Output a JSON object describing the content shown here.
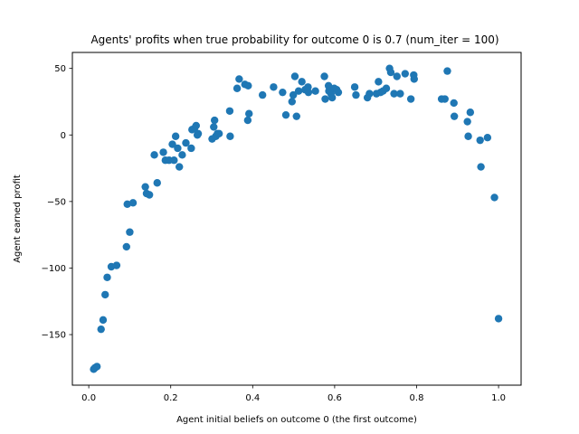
{
  "chart_data": {
    "type": "scatter",
    "title": "Agents' profits when true probability for outcome 0 is 0.7 (num_iter = 100)",
    "xlabel": "Agent initial beliefs on outcome 0 (the first outcome)",
    "ylabel": "Agent earned profit",
    "xlim": [
      -0.04,
      1.055
    ],
    "ylim": [
      -188,
      62
    ],
    "xticks": [
      0.0,
      0.2,
      0.4,
      0.6,
      0.8,
      1.0
    ],
    "xtick_labels": [
      "0.0",
      "0.2",
      "0.4",
      "0.6",
      "0.8",
      "1.0"
    ],
    "yticks": [
      -150,
      -100,
      -50,
      0,
      50
    ],
    "ytick_labels": [
      "−150",
      "−100",
      "−50",
      "0",
      "50"
    ],
    "grid": false,
    "marker_color": "#1f77b4",
    "points": [
      [
        0.012,
        -176
      ],
      [
        0.015,
        -175
      ],
      [
        0.02,
        -174
      ],
      [
        0.03,
        -146
      ],
      [
        0.035,
        -139
      ],
      [
        0.04,
        -120
      ],
      [
        0.045,
        -107
      ],
      [
        0.055,
        -99
      ],
      [
        0.068,
        -98
      ],
      [
        0.092,
        -84
      ],
      [
        0.094,
        -52
      ],
      [
        0.1,
        -73
      ],
      [
        0.108,
        -51
      ],
      [
        0.138,
        -39
      ],
      [
        0.141,
        -44
      ],
      [
        0.148,
        -45
      ],
      [
        0.16,
        -15
      ],
      [
        0.167,
        -36
      ],
      [
        0.182,
        -13
      ],
      [
        0.187,
        -19
      ],
      [
        0.196,
        -19
      ],
      [
        0.204,
        -7
      ],
      [
        0.208,
        -19
      ],
      [
        0.212,
        -1
      ],
      [
        0.217,
        -10
      ],
      [
        0.221,
        -24
      ],
      [
        0.228,
        -15
      ],
      [
        0.237,
        -6
      ],
      [
        0.25,
        -10
      ],
      [
        0.252,
        4
      ],
      [
        0.258,
        5
      ],
      [
        0.262,
        7
      ],
      [
        0.265,
        0
      ],
      [
        0.267,
        1
      ],
      [
        0.301,
        -3
      ],
      [
        0.305,
        6
      ],
      [
        0.307,
        11
      ],
      [
        0.31,
        -1
      ],
      [
        0.314,
        1
      ],
      [
        0.318,
        1
      ],
      [
        0.344,
        18
      ],
      [
        0.345,
        -1
      ],
      [
        0.362,
        35
      ],
      [
        0.367,
        42
      ],
      [
        0.381,
        38
      ],
      [
        0.389,
        37
      ],
      [
        0.388,
        11
      ],
      [
        0.391,
        16
      ],
      [
        0.424,
        30
      ],
      [
        0.451,
        36
      ],
      [
        0.473,
        32
      ],
      [
        0.481,
        15
      ],
      [
        0.496,
        25
      ],
      [
        0.499,
        30
      ],
      [
        0.503,
        44
      ],
      [
        0.507,
        14
      ],
      [
        0.512,
        33
      ],
      [
        0.52,
        40
      ],
      [
        0.528,
        34
      ],
      [
        0.535,
        36
      ],
      [
        0.536,
        32
      ],
      [
        0.553,
        33
      ],
      [
        0.575,
        44
      ],
      [
        0.577,
        27
      ],
      [
        0.585,
        37
      ],
      [
        0.586,
        33
      ],
      [
        0.591,
        31
      ],
      [
        0.594,
        28
      ],
      [
        0.599,
        35
      ],
      [
        0.605,
        34
      ],
      [
        0.609,
        32
      ],
      [
        0.649,
        36
      ],
      [
        0.652,
        30
      ],
      [
        0.68,
        28
      ],
      [
        0.685,
        31
      ],
      [
        0.702,
        31
      ],
      [
        0.707,
        40
      ],
      [
        0.712,
        32
      ],
      [
        0.718,
        33
      ],
      [
        0.726,
        35
      ],
      [
        0.734,
        50
      ],
      [
        0.737,
        47
      ],
      [
        0.745,
        31
      ],
      [
        0.752,
        44
      ],
      [
        0.76,
        31
      ],
      [
        0.772,
        46
      ],
      [
        0.786,
        27
      ],
      [
        0.793,
        45
      ],
      [
        0.794,
        42
      ],
      [
        0.861,
        27
      ],
      [
        0.869,
        27
      ],
      [
        0.875,
        48
      ],
      [
        0.891,
        24
      ],
      [
        0.892,
        14
      ],
      [
        0.924,
        10
      ],
      [
        0.926,
        -1
      ],
      [
        0.931,
        17
      ],
      [
        0.955,
        -4
      ],
      [
        0.957,
        -24
      ],
      [
        0.973,
        -2
      ],
      [
        0.99,
        -47
      ],
      [
        1.0,
        -138
      ]
    ]
  }
}
